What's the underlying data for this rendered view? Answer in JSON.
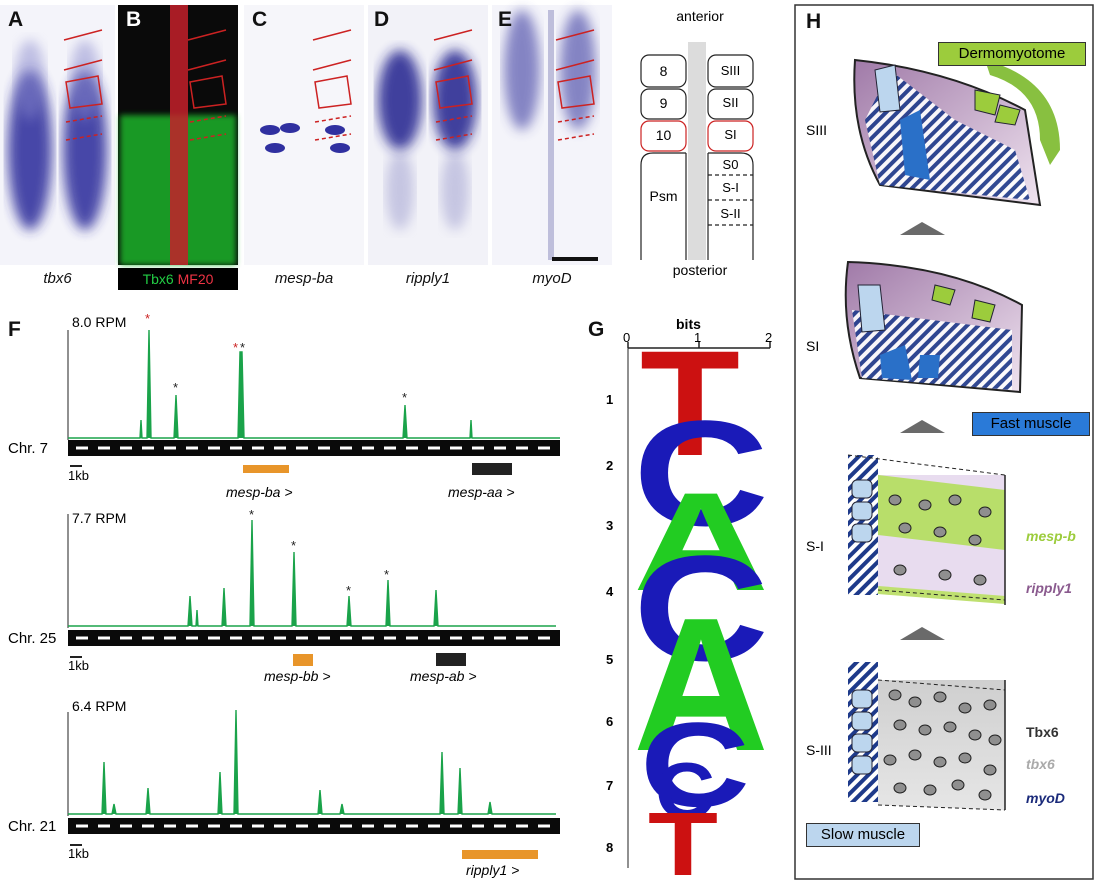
{
  "panels": {
    "A": {
      "letter": "A",
      "label": "tbx6"
    },
    "B": {
      "letter": "B",
      "label_green": "Tbx6",
      "label_red": "MF20"
    },
    "C": {
      "letter": "C",
      "label": "mesp-ba"
    },
    "D": {
      "letter": "D",
      "label": "ripply1"
    },
    "E": {
      "letter": "E",
      "label": "myoD"
    },
    "F": {
      "letter": "F"
    },
    "G": {
      "letter": "G"
    },
    "H": {
      "letter": "H"
    }
  },
  "schematic": {
    "top": "anterior",
    "bottom": "posterior",
    "left_labels": [
      "8",
      "9",
      "10",
      "Psm"
    ],
    "right_labels": [
      "SIII",
      "SII",
      "SI",
      "S0",
      "S-I",
      "S-II"
    ]
  },
  "tracks": [
    {
      "rpm": "8.0 RPM",
      "chr": "Chr. 7",
      "scale": "1kb",
      "genes": [
        {
          "name": "mesp-ba >",
          "color": "#e8952a"
        },
        {
          "name": "mesp-aa >",
          "color": "#222222"
        }
      ]
    },
    {
      "rpm": "7.7 RPM",
      "chr": "Chr. 25",
      "scale": "1kb",
      "genes": [
        {
          "name": "mesp-bb >",
          "color": "#e8952a"
        },
        {
          "name": "mesp-ab >",
          "color": "#222222"
        }
      ]
    },
    {
      "rpm": "6.4 RPM",
      "chr": "Chr. 21",
      "scale": "1kb",
      "genes": [
        {
          "name": "ripply1 >",
          "color": "#e8952a"
        }
      ]
    }
  ],
  "logo": {
    "axis_title": "bits",
    "ticks": [
      "0",
      "1",
      "2"
    ],
    "positions": [
      "1",
      "2",
      "3",
      "4",
      "5",
      "6",
      "7",
      "8"
    ],
    "letters": [
      "T",
      "C",
      "A",
      "C",
      "A",
      "C",
      "C",
      "T"
    ]
  },
  "model": {
    "stages": [
      "SIII",
      "SI",
      "S-I",
      "S-III"
    ],
    "dermomyotome": "Dermomyotome",
    "fast_muscle": "Fast muscle",
    "slow_muscle": "Slow muscle",
    "legend": [
      {
        "text": "mesp-b",
        "color": "#9ccc3c"
      },
      {
        "text": "ripply1",
        "color": "#8a5a8e"
      },
      {
        "text": "Tbx6",
        "color": "#333333"
      },
      {
        "text": "tbx6",
        "color": "#aaaaaa"
      },
      {
        "text": "myoD",
        "color": "#1a2a7a"
      }
    ]
  },
  "colors": {
    "track_green": "#1aa34a",
    "gene_orange": "#e8952a",
    "ish_blue": "#2a2a8a",
    "logo_red": "#cc1111",
    "logo_blue": "#1a1ab8",
    "logo_green": "#22cc22",
    "logo_orange": "#f0a000"
  }
}
